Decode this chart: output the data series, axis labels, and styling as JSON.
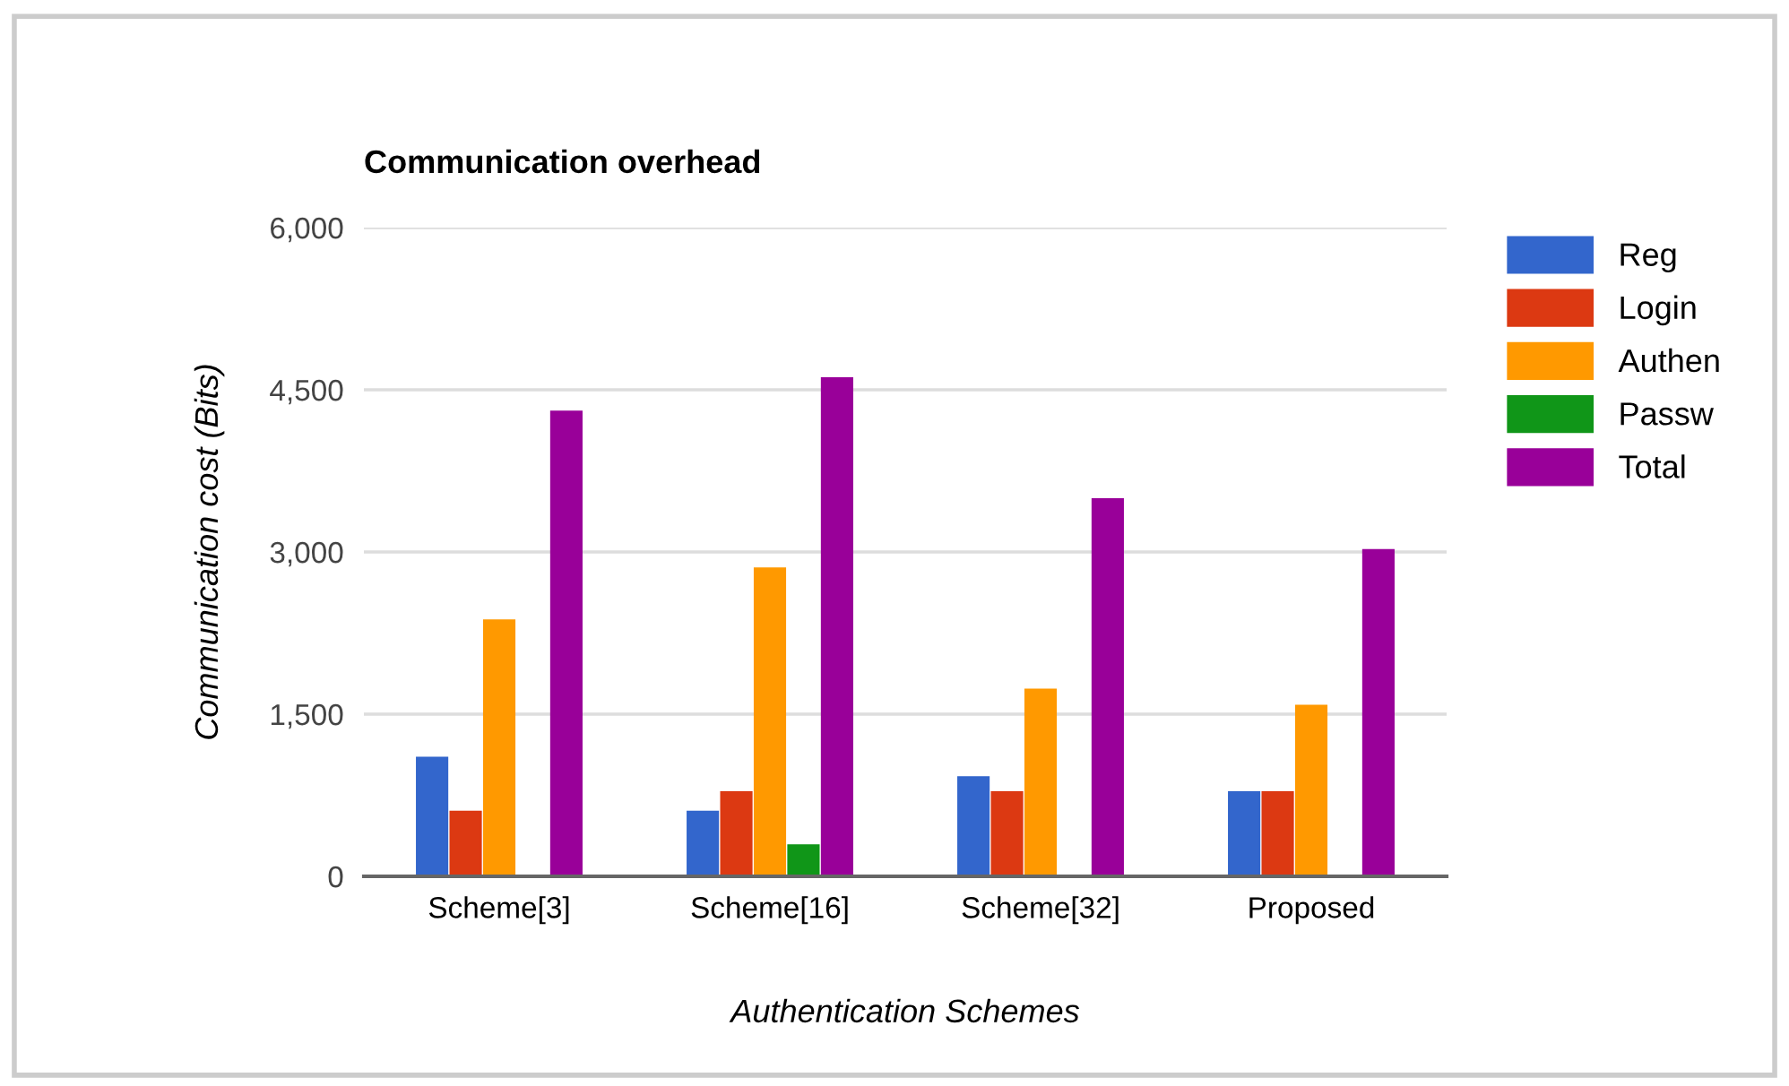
{
  "chart_data": {
    "type": "bar",
    "title": "Communication overhead",
    "xlabel": "Authentication Schemes",
    "ylabel": "Communication cost (Bits)",
    "categories": [
      "Scheme[3]",
      "Scheme[16]",
      "Scheme[32]",
      "Proposed"
    ],
    "series": [
      {
        "name": "Reg",
        "color": "#3366cc",
        "values": [
          1100,
          600,
          920,
          780
        ]
      },
      {
        "name": "Login",
        "color": "#dc3912",
        "values": [
          600,
          780,
          780,
          780
        ]
      },
      {
        "name": "Authen",
        "color": "#ff9900",
        "values": [
          2370,
          2850,
          1730,
          1580
        ]
      },
      {
        "name": "Passw",
        "color": "#109618",
        "values": [
          0,
          290,
          0,
          0
        ]
      },
      {
        "name": "Total",
        "color": "#990099",
        "values": [
          4300,
          4610,
          3490,
          3020
        ]
      }
    ],
    "ylim": [
      0,
      6000
    ],
    "yticks": [
      {
        "value": 0,
        "label": "0"
      },
      {
        "value": 1500,
        "label": "1,500"
      },
      {
        "value": 3000,
        "label": "3,000"
      },
      {
        "value": 4500,
        "label": "4,500"
      },
      {
        "value": 6000,
        "label": "6,000"
      }
    ],
    "grid": "y",
    "legend": "right"
  }
}
